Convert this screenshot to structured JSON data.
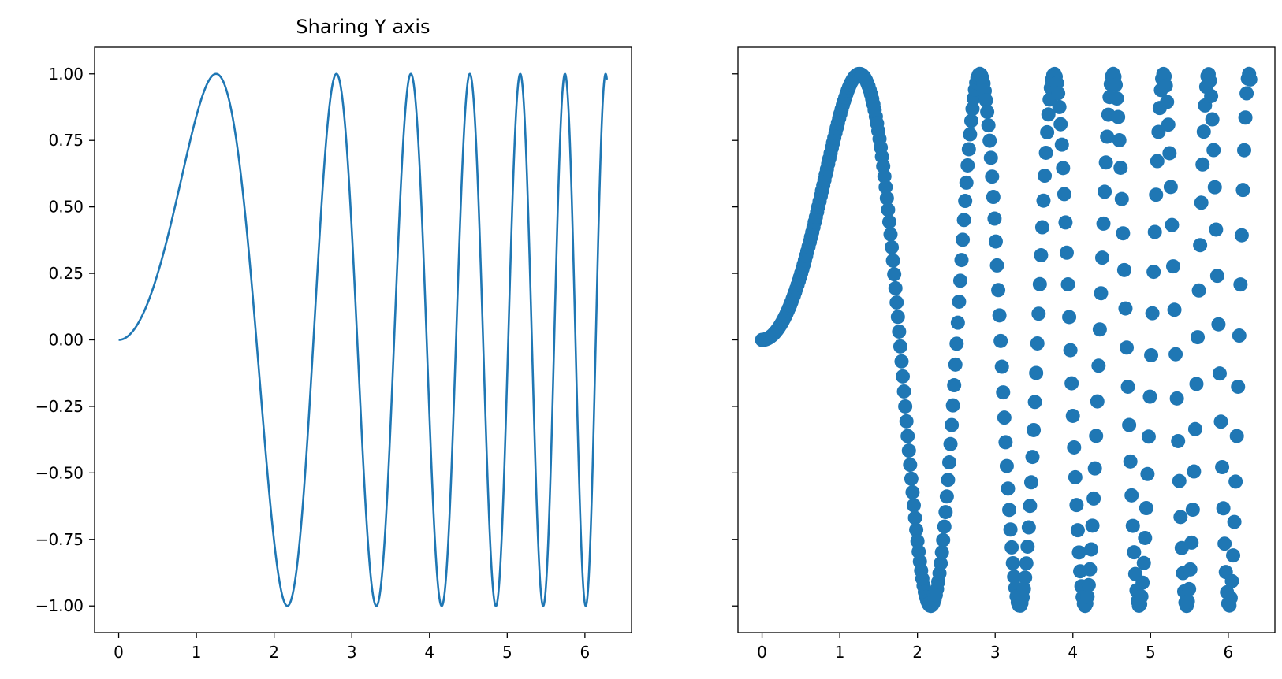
{
  "figure": {
    "background": "#ffffff",
    "series_color": "#1f77b4"
  },
  "chart_data": [
    {
      "type": "line",
      "title": "Sharing Y axis",
      "function": "y = sin(x^2)",
      "xlim": [
        -0.31,
        6.6
      ],
      "ylim": [
        -1.1,
        1.1
      ],
      "xrange": [
        0,
        6.283
      ],
      "x_ticks": [
        0,
        1,
        2,
        3,
        4,
        5,
        6
      ],
      "y_ticks": [
        1.0,
        0.75,
        0.5,
        0.25,
        0.0,
        -0.25,
        -0.5,
        -0.75,
        -1.0
      ],
      "x_tick_labels": [
        "0",
        "1",
        "2",
        "3",
        "4",
        "5",
        "6"
      ],
      "y_tick_labels": [
        "1.00",
        "0.75",
        "0.50",
        "0.25",
        "0.00",
        "−0.25",
        "−0.50",
        "−0.75",
        "−1.00"
      ],
      "grid": false
    },
    {
      "type": "scatter",
      "title": "",
      "function": "y = sin(x^2)",
      "points": 400,
      "xlim": [
        -0.31,
        6.6
      ],
      "ylim": [
        -1.1,
        1.1
      ],
      "xrange": [
        0,
        6.283
      ],
      "sharey": true,
      "x_ticks": [
        0,
        1,
        2,
        3,
        4,
        5,
        6
      ],
      "x_tick_labels": [
        "0",
        "1",
        "2",
        "3",
        "4",
        "5",
        "6"
      ],
      "grid": false
    }
  ]
}
